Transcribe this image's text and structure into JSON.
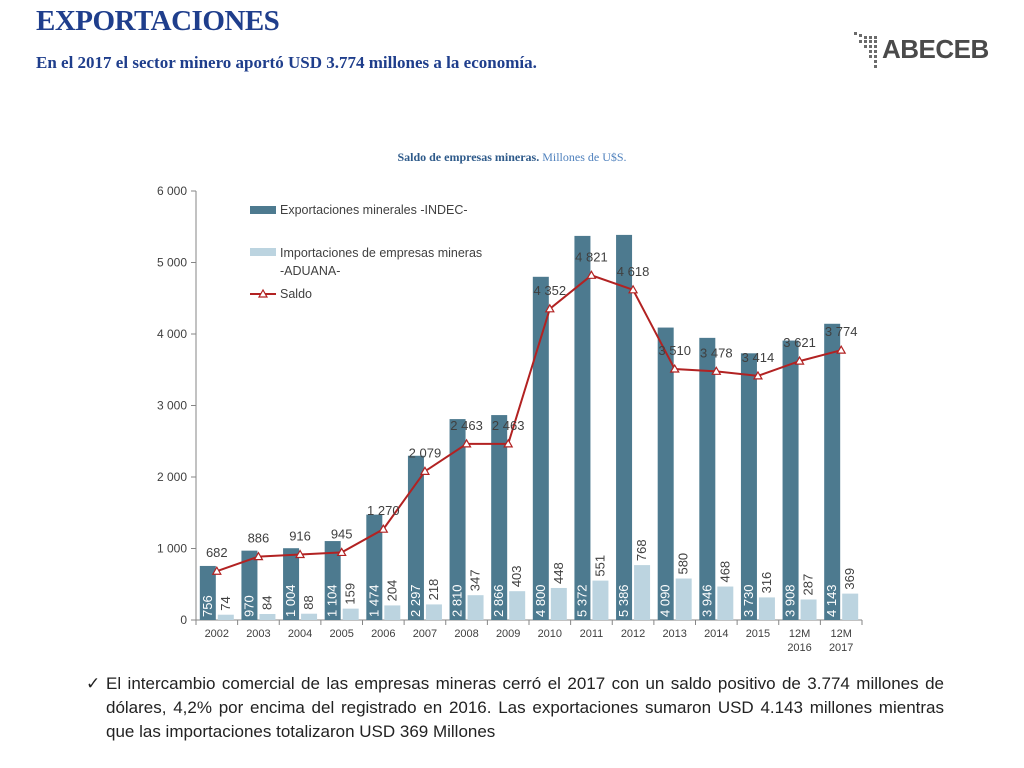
{
  "header": {
    "title": "EXPORTACIONES",
    "subtitle": "En el 2017 el sector minero aportó USD 3.774  millones a la economía.",
    "logo_text": "ABECEB"
  },
  "chart_title": {
    "bold": "Saldo de empresas mineras.",
    "regular": "Millones de U$S."
  },
  "colors": {
    "title": "#1f3e8c",
    "exports_bar": "#4d7a8f",
    "imports_bar": "#bcd4e0",
    "saldo_line": "#b22222"
  },
  "chart_data": {
    "type": "bar",
    "categories": [
      "2002",
      "2003",
      "2004",
      "2005",
      "2006",
      "2007",
      "2008",
      "2009",
      "2010",
      "2011",
      "2012",
      "2013",
      "2014",
      "2015",
      "12M 2016",
      "12M 2017"
    ],
    "series": [
      {
        "name": "Exportaciones minerales -INDEC-",
        "type": "bar",
        "values": [
          756,
          970,
          1004,
          1104,
          1474,
          2297,
          2810,
          2866,
          4800,
          5372,
          5386,
          4090,
          3946,
          3730,
          3908,
          4143
        ],
        "labels": [
          "756",
          "970",
          "1 004",
          "1 104",
          "1 474",
          "2 297",
          "2 810",
          "2 866",
          "4 800",
          "5 372",
          "5 386",
          "4 090",
          "3 946",
          "3 730",
          "3 908",
          "4 143"
        ]
      },
      {
        "name": "Importaciones de empresas mineras -ADUANA-",
        "type": "bar",
        "values": [
          74,
          84,
          88,
          159,
          204,
          218,
          347,
          403,
          448,
          551,
          768,
          580,
          468,
          316,
          287,
          369
        ],
        "labels": [
          "74",
          "84",
          "88",
          "159",
          "204",
          "218",
          "347",
          "403",
          "448",
          "551",
          "768",
          "580",
          "468",
          "316",
          "287",
          "369"
        ]
      },
      {
        "name": "Saldo",
        "type": "line",
        "values": [
          682,
          886,
          916,
          945,
          1270,
          2079,
          2463,
          2463,
          4352,
          4821,
          4618,
          3510,
          3478,
          3414,
          3621,
          3774
        ],
        "labels": [
          "682",
          "886",
          "916",
          "945",
          "1 270",
          "2 079",
          "2 463",
          "2 463",
          "4 352",
          "4 821",
          "4 618",
          "3 510",
          "3 478",
          "3 414",
          "3 621",
          "3 774"
        ]
      }
    ],
    "ylim": [
      0,
      6000
    ],
    "yticks": [
      0,
      1000,
      2000,
      3000,
      4000,
      5000,
      6000
    ],
    "ytick_labels": [
      "0",
      "1 000",
      "2 000",
      "3 000",
      "4 000",
      "5 000",
      "6 000"
    ],
    "legend_position": "top-left",
    "grid": false
  },
  "note": {
    "check": "✓",
    "text": "El intercambio comercial de las empresas mineras cerró el 2017 con un saldo positivo de 3.774 millones de dólares, 4,2% por encima del registrado en 2016. Las exportaciones sumaron USD 4.143 millones mientras que las importaciones totalizaron USD 369 Millones"
  }
}
